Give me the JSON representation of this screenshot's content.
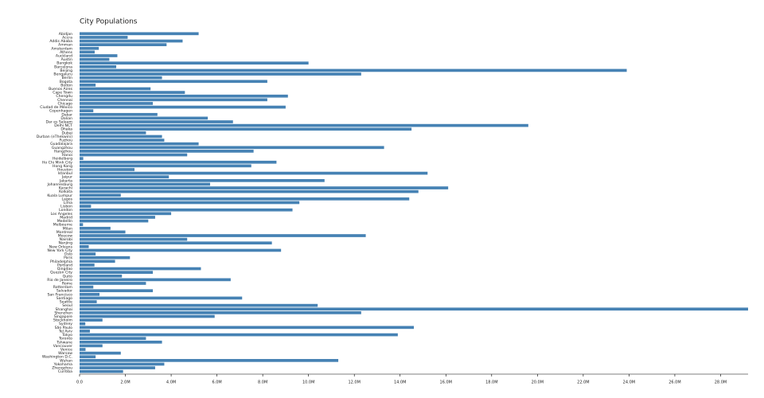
{
  "chart_data": {
    "type": "bar",
    "orientation": "horizontal",
    "title": "City Populations",
    "color": "#4682b4",
    "categories": [
      "Abidjan",
      "Accra",
      "Addis Ababa",
      "Amman",
      "Amsterdam",
      "Athens",
      "Auckland",
      "Austin",
      "Bangkok",
      "Barcelona",
      "Beijing",
      "Bengaluru",
      "Berlin",
      "Bogota",
      "Bolton",
      "Buenos Aires",
      "Cape Town",
      "Chengdu",
      "Chennai",
      "Chicago",
      "Ciudad de México",
      "Copenhagen",
      "Dakar",
      "Dalian",
      "Dar es Salaam",
      "Delhi NCT",
      "Dhaka",
      "Dubai",
      "Durban (eThekwini)",
      "Fuzhou",
      "Guadalajara",
      "Guangzhou",
      "Hangzhou",
      "Hanoi",
      "Heidelberg",
      "Ho Chi Minh City",
      "Hong Kong",
      "Houston",
      "Istanbul",
      "Jaipur",
      "Jakarta",
      "Johannesburg",
      "Karachi",
      "Kolkata",
      "Kuala Lumpur",
      "Lagos",
      "Lima",
      "Lisbon",
      "London",
      "Los Angeles",
      "Madrid",
      "Medellín",
      "Melbourne",
      "Milan",
      "Montreal",
      "Moscow",
      "Nairobi",
      "Nanjing",
      "New Orleans",
      "New York City",
      "Oslo",
      "Paris",
      "Philadelphia",
      "Portland",
      "Qingdao",
      "Quezon City",
      "Quito",
      "Rio de Janeiro",
      "Rome",
      "Rotterdam",
      "Salvador",
      "San Francisco",
      "Santiago",
      "Seattle",
      "Seoul",
      "Shanghai",
      "Shenzhen",
      "Singapore",
      "Stockholm",
      "Sydney",
      "São Paulo",
      "Tel Aviv",
      "Tokyo",
      "Toronto",
      "Tshwane",
      "Vancouver",
      "Venice",
      "Warsaw",
      "Washington D.C.",
      "Wuhan",
      "Yokohama",
      "Zhengzhou",
      "Curitiba"
    ],
    "values": [
      5200000,
      2100000,
      4500000,
      3800000,
      840000,
      660000,
      1650000,
      1300000,
      10000000,
      1600000,
      23900000,
      12300000,
      3600000,
      8200000,
      700000,
      3100000,
      4600000,
      9100000,
      8200000,
      3200000,
      9000000,
      600000,
      3400000,
      5600000,
      6700000,
      19600000,
      14500000,
      2900000,
      3600000,
      3700000,
      5200000,
      13300000,
      7600000,
      4700000,
      160000,
      8600000,
      7500000,
      2400000,
      15200000,
      3900000,
      10700000,
      5700000,
      16100000,
      14800000,
      1800000,
      14400000,
      9600000,
      500000,
      9300000,
      4000000,
      3300000,
      3000000,
      150000,
      1350000,
      2000000,
      12500000,
      4700000,
      8400000,
      400000,
      8800000,
      700000,
      2200000,
      1550000,
      650000,
      5300000,
      3200000,
      1850000,
      6600000,
      2900000,
      600000,
      3200000,
      870000,
      7100000,
      750000,
      10400000,
      29200000,
      12300000,
      5900000,
      1000000,
      250000,
      14600000,
      450000,
      13900000,
      2900000,
      3600000,
      1000000,
      260000,
      1800000,
      700000,
      11300000,
      3700000,
      3300000,
      1900000
    ],
    "xlim": [
      0,
      29200000
    ],
    "xticks": [
      {
        "value": 0,
        "label": "0.0"
      },
      {
        "value": 2000000,
        "label": "2.0M"
      },
      {
        "value": 4000000,
        "label": "4.0M"
      },
      {
        "value": 6000000,
        "label": "6.0M"
      },
      {
        "value": 8000000,
        "label": "8.0M"
      },
      {
        "value": 10000000,
        "label": "10.0M"
      },
      {
        "value": 12000000,
        "label": "12.0M"
      },
      {
        "value": 14000000,
        "label": "14.0M"
      },
      {
        "value": 16000000,
        "label": "16.0M"
      },
      {
        "value": 18000000,
        "label": "18.0M"
      },
      {
        "value": 20000000,
        "label": "20.0M"
      },
      {
        "value": 22000000,
        "label": "22.0M"
      },
      {
        "value": 24000000,
        "label": "24.0M"
      },
      {
        "value": 26000000,
        "label": "26.0M"
      },
      {
        "value": 28000000,
        "label": "28.0M"
      }
    ]
  }
}
